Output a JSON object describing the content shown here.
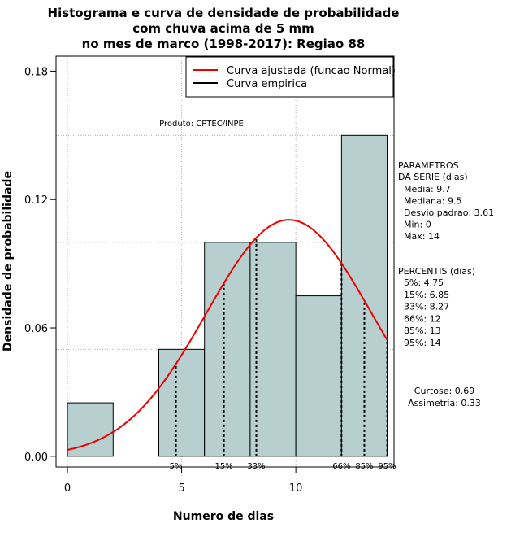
{
  "chart_data": {
    "type": "bar",
    "title_lines": [
      "Histograma e curva de densidade de probabilidade",
      "com chuva acima de 5 mm",
      "no mes de marco (1998-2017): Regiao 88"
    ],
    "xlabel": "Numero de dias",
    "ylabel": "Densidade de probabilidade",
    "xlim": [
      -0.5,
      14.3
    ],
    "ylim": [
      -0.005,
      0.187
    ],
    "x_ticks": [
      0,
      5,
      10
    ],
    "y_ticks": [
      0.0,
      0.06,
      0.12,
      0.18
    ],
    "y_tick_labels": [
      "0.00",
      "0.06",
      "0.12",
      "0.18"
    ],
    "grid_y": [
      0.05,
      0.1,
      0.15
    ],
    "bars": [
      {
        "x0": 0,
        "x1": 2,
        "density": 0.025
      },
      {
        "x0": 2,
        "x1": 4,
        "density": 0.0
      },
      {
        "x0": 4,
        "x1": 6,
        "density": 0.05
      },
      {
        "x0": 6,
        "x1": 8,
        "density": 0.1
      },
      {
        "x0": 8,
        "x1": 10,
        "density": 0.1
      },
      {
        "x0": 10,
        "x1": 12,
        "density": 0.075
      },
      {
        "x0": 12,
        "x1": 14,
        "density": 0.15
      }
    ],
    "normal_curve": {
      "mean": 9.7,
      "sd": 3.61,
      "x_from": 0,
      "x_to": 14,
      "color": "#ee0000"
    },
    "percentile_lines": [
      {
        "label": "5%",
        "x": 4.75
      },
      {
        "label": "15%",
        "x": 6.85
      },
      {
        "label": "33%",
        "x": 8.27
      },
      {
        "label": "66%",
        "x": 12
      },
      {
        "label": "85%",
        "x": 13
      },
      {
        "label": "95%",
        "x": 14
      }
    ],
    "legend": [
      {
        "label": "Curva ajustada (funcao Normal)",
        "color": "#ee0000"
      },
      {
        "label": "Curva empirica",
        "color": "#000000"
      }
    ],
    "legend_position": "top-right",
    "annotation": "Produto: CPTEC/INPE",
    "bar_color": "#b7cfcf",
    "parametros": {
      "title_lines": [
        "PARAMETROS",
        "DA SERIE (dias)"
      ],
      "items": [
        "Media: 9.7",
        "Mediana: 9.5",
        "Desvio padrao: 3.61",
        "Min: 0",
        "Max: 14"
      ]
    },
    "percentis": {
      "title": "PERCENTIS (dias)",
      "items": [
        "5%: 4.75",
        "15%: 6.85",
        "33%: 8.27",
        "66%: 12",
        "85%: 13",
        "95%: 14"
      ]
    },
    "stats": [
      "Curtose: 0.69",
      "Assimetria: 0.33"
    ]
  }
}
